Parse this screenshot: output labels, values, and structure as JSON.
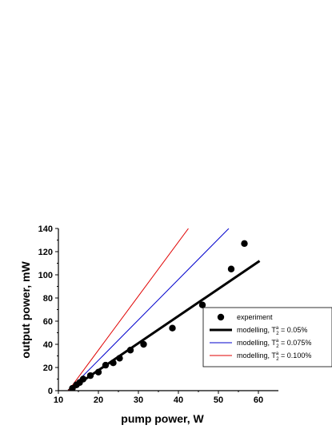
{
  "chart_data": {
    "type": "scatter",
    "xlabel": "pump power, W",
    "ylabel": "output power, mW",
    "xlim": [
      10,
      65
    ],
    "ylim": [
      0,
      140
    ],
    "x_ticks": [
      10,
      20,
      30,
      40,
      50,
      60
    ],
    "y_ticks": [
      0,
      20,
      40,
      60,
      80,
      100,
      120,
      140
    ],
    "legend_position": "lower-right",
    "series": [
      {
        "name": "experiment",
        "kind": "scatter",
        "color": "#000000",
        "x": [
          13.5,
          14.5,
          15.3,
          16.2,
          18.0,
          20.0,
          21.8,
          23.7,
          25.3,
          28.0,
          31.3,
          38.5,
          46.0,
          53.2,
          56.5
        ],
        "y": [
          2,
          5,
          7,
          10,
          13,
          16,
          22,
          24,
          28,
          35,
          40,
          54,
          74,
          105,
          127
        ]
      },
      {
        "name": "modelling, T",
        "sub": "2",
        "sup": "a",
        "suffix": " = 0.05%",
        "kind": "line",
        "color": "#000000",
        "width": 3,
        "x": [
          12.5,
          60.3
        ],
        "y": [
          0,
          112
        ]
      },
      {
        "name": "modelling, T",
        "sub": "2",
        "sup": "a",
        "suffix": " = 0.075%",
        "kind": "line",
        "color": "#0000cc",
        "width": 1,
        "x": [
          12.5,
          52.6
        ],
        "y": [
          0,
          140
        ]
      },
      {
        "name": "modelling, T",
        "sub": "2",
        "sup": "a",
        "suffix": " = 0.100%",
        "kind": "line",
        "color": "#e00000",
        "width": 1,
        "x": [
          12.5,
          42.5
        ],
        "y": [
          0,
          140
        ]
      }
    ]
  }
}
